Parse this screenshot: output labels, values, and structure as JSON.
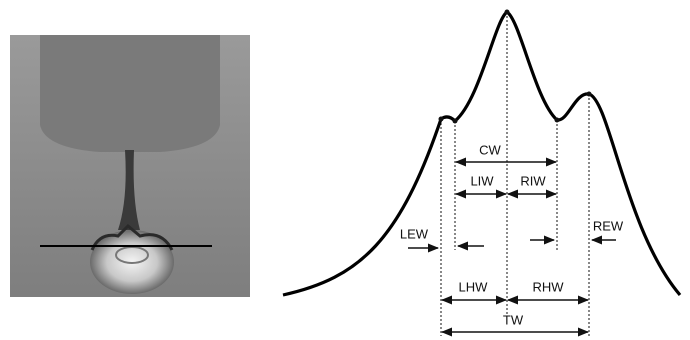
{
  "annotations": {
    "cw": "CW",
    "liw": "LIW",
    "riw": "RIW",
    "lew": "LEW",
    "rew": "REW",
    "lhw": "LHW",
    "rhw": "RHW",
    "tw": "TW"
  }
}
